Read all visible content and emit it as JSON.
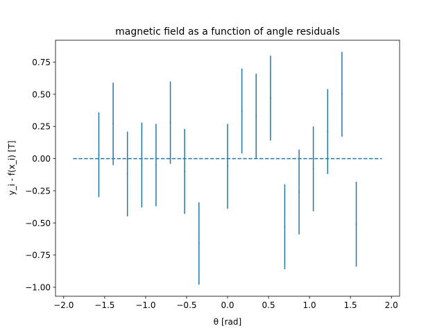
{
  "chart_data": {
    "type": "scatter",
    "title": "magnetic field as a function of angle residuals",
    "xlabel": "θ [rad]",
    "ylabel": "y_i - f(x_i) [T]",
    "xlim": [
      -2.1,
      2.1
    ],
    "ylim": [
      -1.07,
      0.92
    ],
    "x_ticks": [
      -2.0,
      -1.5,
      -1.0,
      -0.5,
      0.0,
      0.5,
      1.0,
      1.5,
      2.0
    ],
    "x_tick_labels": [
      "−2.0",
      "−1.5",
      "−1.0",
      "−0.5",
      "0.0",
      "0.5",
      "1.0",
      "1.5",
      "2.0"
    ],
    "y_ticks": [
      -1.0,
      -0.75,
      -0.5,
      -0.25,
      0.0,
      0.25,
      0.5,
      0.75
    ],
    "y_tick_labels": [
      "−1.00",
      "−0.75",
      "−0.50",
      "−0.25",
      "0.00",
      "0.25",
      "0.50",
      "0.75"
    ],
    "grid": false,
    "color": "#1f77b4",
    "reference_line": {
      "y": 0,
      "x_range": [
        -1.885,
        1.885
      ],
      "style": "dashed"
    },
    "points": [
      {
        "x": -1.571,
        "y": 0.03,
        "err": 0.33
      },
      {
        "x": -1.396,
        "y": 0.27,
        "err": 0.32
      },
      {
        "x": -1.222,
        "y": -0.12,
        "err": 0.33
      },
      {
        "x": -1.047,
        "y": -0.05,
        "err": 0.33
      },
      {
        "x": -0.873,
        "y": -0.05,
        "err": 0.32
      },
      {
        "x": -0.698,
        "y": 0.28,
        "err": 0.32
      },
      {
        "x": -0.524,
        "y": -0.1,
        "err": 0.33
      },
      {
        "x": -0.349,
        "y": -0.66,
        "err": 0.32
      },
      {
        "x": 0.0,
        "y": -0.06,
        "err": 0.33
      },
      {
        "x": 0.175,
        "y": 0.37,
        "err": 0.33
      },
      {
        "x": 0.349,
        "y": 0.33,
        "err": 0.33
      },
      {
        "x": 0.524,
        "y": 0.47,
        "err": 0.33
      },
      {
        "x": 0.698,
        "y": -0.53,
        "err": 0.33
      },
      {
        "x": 0.873,
        "y": -0.26,
        "err": 0.33
      },
      {
        "x": 1.047,
        "y": -0.08,
        "err": 0.33
      },
      {
        "x": 1.222,
        "y": 0.21,
        "err": 0.33
      },
      {
        "x": 1.396,
        "y": 0.5,
        "err": 0.33
      },
      {
        "x": 1.571,
        "y": -0.51,
        "err": 0.33
      }
    ]
  }
}
